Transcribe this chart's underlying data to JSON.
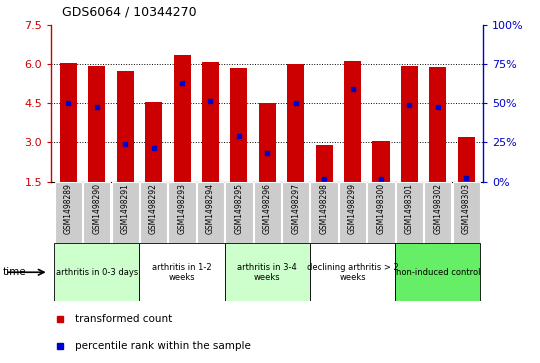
{
  "title": "GDS6064 / 10344270",
  "samples": [
    "GSM1498289",
    "GSM1498290",
    "GSM1498291",
    "GSM1498292",
    "GSM1498293",
    "GSM1498294",
    "GSM1498295",
    "GSM1498296",
    "GSM1498297",
    "GSM1498298",
    "GSM1498299",
    "GSM1498300",
    "GSM1498301",
    "GSM1498302",
    "GSM1498303"
  ],
  "bar_tops": [
    6.05,
    5.95,
    5.75,
    4.55,
    6.35,
    6.1,
    5.85,
    4.5,
    6.0,
    2.9,
    6.15,
    3.05,
    5.95,
    5.9,
    3.2
  ],
  "percentile_values": [
    4.5,
    4.35,
    2.95,
    2.8,
    5.3,
    4.6,
    3.25,
    2.6,
    4.5,
    1.58,
    5.05,
    1.6,
    4.45,
    4.35,
    1.62
  ],
  "bar_bottom": 1.5,
  "ylim_left": [
    1.5,
    7.5
  ],
  "ylim_right": [
    0,
    100
  ],
  "yticks_left": [
    1.5,
    3.0,
    4.5,
    6.0,
    7.5
  ],
  "yticks_right": [
    0,
    25,
    50,
    75,
    100
  ],
  "grid_values": [
    3.0,
    4.5,
    6.0
  ],
  "bar_color": "#CC0000",
  "blue_color": "#0000CC",
  "groups": [
    {
      "label": "arthritis in 0-3 days",
      "start": 0,
      "end": 3,
      "color": "#ccffcc"
    },
    {
      "label": "arthritis in 1-2\nweeks",
      "start": 3,
      "end": 6,
      "color": "#ffffff"
    },
    {
      "label": "arthritis in 3-4\nweeks",
      "start": 6,
      "end": 9,
      "color": "#ccffcc"
    },
    {
      "label": "declining arthritis > 2\nweeks",
      "start": 9,
      "end": 12,
      "color": "#ffffff"
    },
    {
      "label": "non-induced control",
      "start": 12,
      "end": 15,
      "color": "#66ee66"
    }
  ],
  "left_axis_color": "#CC0000",
  "right_axis_color": "#0000CC",
  "bar_width": 0.6,
  "sample_box_color": "#cccccc",
  "fig_bg": "#ffffff"
}
